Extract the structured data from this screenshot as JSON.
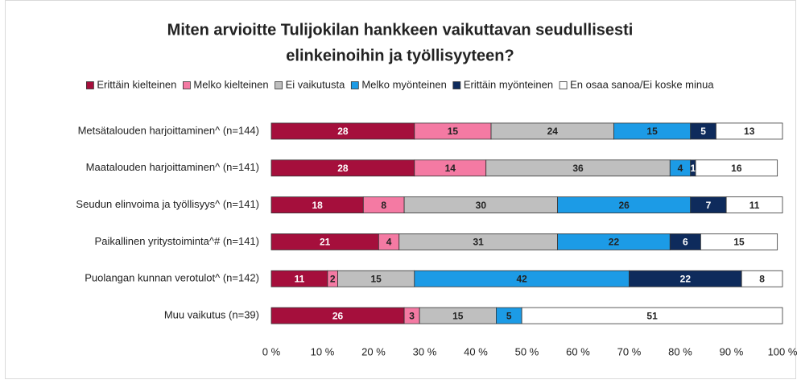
{
  "chart_data": {
    "type": "stacked-barh",
    "title": [
      "Miten arvioitte Tulijokilan hankkeen vaikuttavan seudullisesti",
      "elinkeinoihin ja työllisyyteen?"
    ],
    "categories": [
      "Metsätalouden harjoittaminen^ (n=144)",
      "Maatalouden harjoittaminen^ (n=141)",
      "Seudun elinvoima ja työllisyys^ (n=141)",
      "Paikallinen yritystoiminta^# (n=141)",
      "Puolangan kunnan verotulot^ (n=142)",
      "Muu vaikutus (n=39)"
    ],
    "series": [
      {
        "name": "Erittäin kielteinen",
        "color": "#a50f3c",
        "label_color": "#ffffff",
        "values": [
          28,
          28,
          18,
          21,
          11,
          26
        ]
      },
      {
        "name": "Melko kielteinen",
        "color": "#f47aa3",
        "label_color": "#222222",
        "values": [
          15,
          14,
          8,
          4,
          2,
          3
        ]
      },
      {
        "name": "Ei vaikutusta",
        "color": "#bfbfbf",
        "label_color": "#222222",
        "values": [
          24,
          36,
          30,
          31,
          15,
          15
        ]
      },
      {
        "name": "Melko myönteinen",
        "color": "#1c9be6",
        "label_color": "#222222",
        "values": [
          15,
          4,
          26,
          22,
          42,
          5
        ]
      },
      {
        "name": "Erittäin myönteinen",
        "color": "#0e2b5c",
        "label_color": "#ffffff",
        "values": [
          5,
          1,
          7,
          6,
          22,
          0
        ]
      },
      {
        "name": "En osaa sanoa/Ei koske minua",
        "color": "#ffffff",
        "label_color": "#222222",
        "values": [
          13,
          16,
          11,
          15,
          8,
          51
        ]
      }
    ],
    "xlim": [
      0,
      100
    ],
    "xticks": [
      {
        "value": 0,
        "label": "0 %"
      },
      {
        "value": 10,
        "label": "10 %"
      },
      {
        "value": 20,
        "label": "20 %"
      },
      {
        "value": 30,
        "label": "30 %"
      },
      {
        "value": 40,
        "label": "40 %"
      },
      {
        "value": 50,
        "label": "50 %"
      },
      {
        "value": 60,
        "label": "60 %"
      },
      {
        "value": 70,
        "label": "70 %"
      },
      {
        "value": 80,
        "label": "80 %"
      },
      {
        "value": 90,
        "label": "90 %"
      },
      {
        "value": 100,
        "label": "100 %"
      }
    ],
    "grid": false
  }
}
